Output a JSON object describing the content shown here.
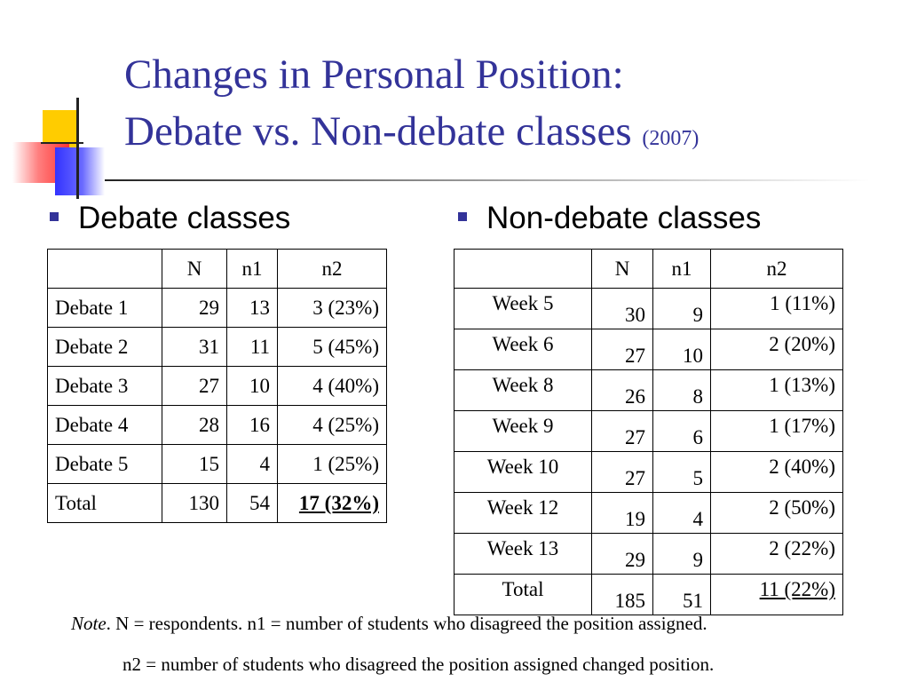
{
  "slide": {
    "title_line1": "Changes in Personal Position:",
    "title_line2": "Debate vs. Non-debate classes",
    "title_year": "(2007)"
  },
  "left": {
    "heading": "Debate classes",
    "columns": [
      "",
      "N",
      "n1",
      "n2"
    ],
    "rows": [
      [
        "Debate 1",
        "29",
        "13",
        "3 (23%)"
      ],
      [
        "Debate 2",
        "31",
        "11",
        "5 (45%)"
      ],
      [
        "Debate 3",
        "27",
        "10",
        "4 (40%)"
      ],
      [
        "Debate 4",
        "28",
        "16",
        "4 (25%)"
      ],
      [
        "Debate 5",
        "15",
        "4",
        "1 (25%)"
      ],
      [
        "Total",
        "130",
        "54",
        "17 (32%)"
      ]
    ]
  },
  "right": {
    "heading": "Non-debate classes",
    "columns": [
      "",
      "N",
      "n1",
      "n2"
    ],
    "rows": [
      [
        "Week 5",
        "30",
        "9",
        "1 (11%)"
      ],
      [
        "Week 6",
        "27",
        "10",
        "2 (20%)"
      ],
      [
        "Week 8",
        "26",
        "8",
        "1 (13%)"
      ],
      [
        "Week 9",
        "27",
        "6",
        "1 (17%)"
      ],
      [
        "Week 10",
        "27",
        "5",
        "2 (40%)"
      ],
      [
        "Week 12",
        "19",
        "4",
        "2 (50%)"
      ],
      [
        "Week 13",
        "29",
        "9",
        "2 (22%)"
      ],
      [
        "Total",
        "185",
        "51",
        "11 (22%)"
      ]
    ]
  },
  "note": {
    "label": "Note",
    "line1": ". N = respondents. n1 = number of students who disagreed the position assigned.",
    "line2": "n2 = number of students who disagreed the position assigned changed position."
  },
  "colors": {
    "title": "#333399",
    "bullet": "#333399",
    "deco_yellow": "#ffcc00",
    "deco_blue": "#3333ff",
    "deco_red": "#ff3333"
  }
}
